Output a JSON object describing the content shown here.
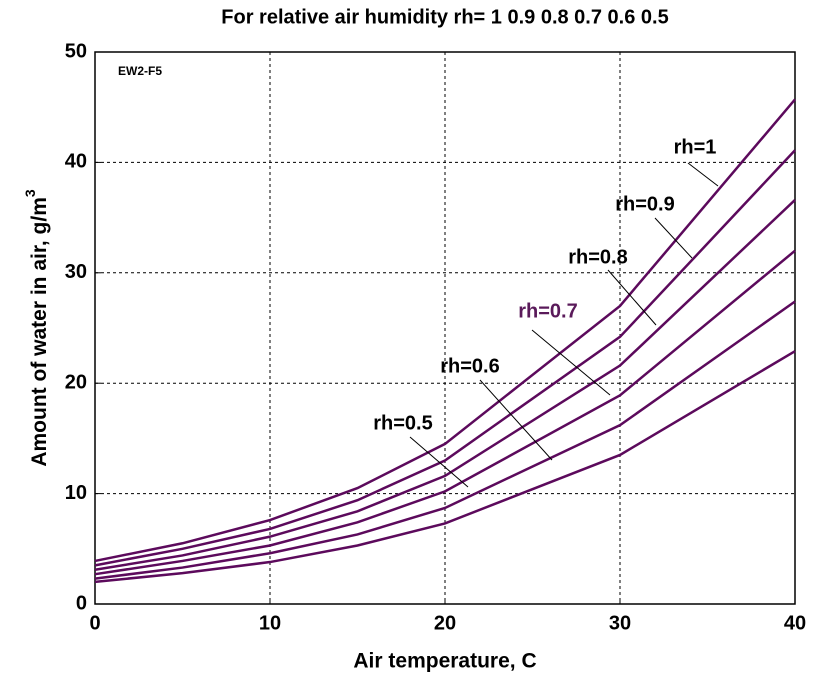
{
  "chart_data": {
    "type": "line",
    "title": "For relative air humidity rh= 1 0.9 0.8 0.7 0.6 0.5",
    "xlabel": "Air temperature, C",
    "ylabel": "Amount of water in air, g/m",
    "ylabel_superscript": "3",
    "annotation": "EW2-F5",
    "x": [
      0,
      5,
      10,
      15,
      20,
      30,
      40
    ],
    "series": [
      {
        "name": "rh=1",
        "color": "#5c0a5c",
        "label_color": "#000000",
        "values": [
          3.9,
          5.5,
          7.6,
          10.5,
          14.5,
          27,
          45.7
        ]
      },
      {
        "name": "rh=0.9",
        "color": "#5c0a5c",
        "label_color": "#000000",
        "values": [
          3.5,
          5.0,
          6.8,
          9.4,
          13.0,
          24.2,
          41.1
        ]
      },
      {
        "name": "rh=0.8",
        "color": "#5c0a5c",
        "label_color": "#000000",
        "values": [
          3.1,
          4.4,
          6.1,
          8.4,
          11.6,
          21.6,
          36.6
        ]
      },
      {
        "name": "rh=0.7",
        "color": "#5c0a5c",
        "label_color": "#5a1a5a",
        "values": [
          2.7,
          3.9,
          5.3,
          7.4,
          10.2,
          18.9,
          32.0
        ]
      },
      {
        "name": "rh=0.6",
        "color": "#5c0a5c",
        "label_color": "#000000",
        "values": [
          2.3,
          3.3,
          4.6,
          6.3,
          8.7,
          16.2,
          27.4
        ]
      },
      {
        "name": "rh=0.5",
        "color": "#5c0a5c",
        "label_color": "#000000",
        "values": [
          2.0,
          2.8,
          3.8,
          5.3,
          7.3,
          13.5,
          22.9
        ]
      }
    ],
    "xlim": [
      0,
      40
    ],
    "xticks": [
      0,
      10,
      20,
      30,
      40
    ],
    "ylim": [
      0,
      50
    ],
    "yticks": [
      0,
      10,
      20,
      30,
      40,
      50
    ],
    "grid": true
  }
}
